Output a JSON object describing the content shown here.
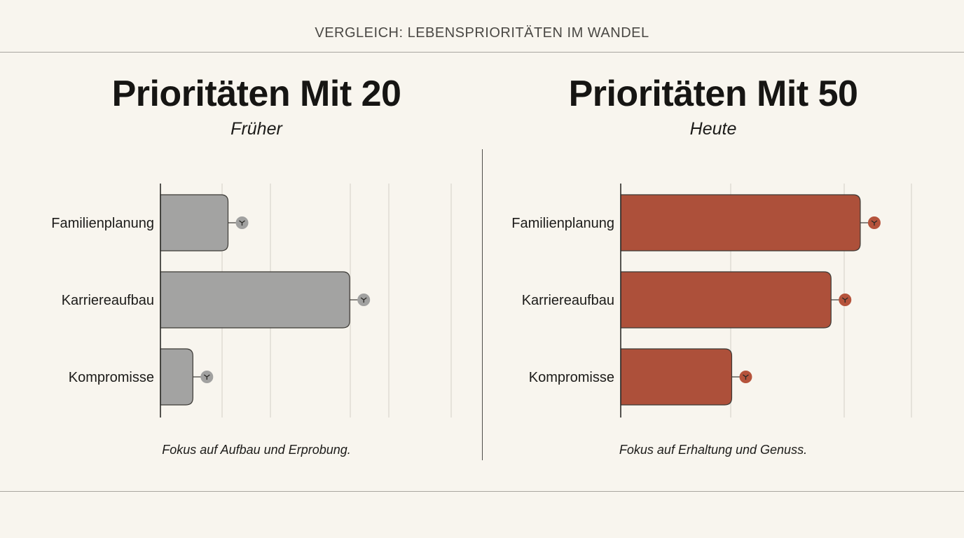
{
  "header": {
    "title": "VERGLEICH: LEBENSPRIORITÄTEN IM WANDEL"
  },
  "left_panel": {
    "title": "Prioritäten Mit 20",
    "subtitle": "Früher",
    "note": "Fokus auf Aufbau und Erprobung."
  },
  "right_panel": {
    "title": "Prioritäten Mit 50",
    "subtitle": "Heute",
    "note": "Fokus auf Erhaltung und Genuss."
  },
  "colors": {
    "left_bar": "#a3a3a2",
    "left_marker": "#a1a1a0",
    "right_bar": "#ad503a",
    "right_marker": "#b5533b",
    "grid": "#d9d5cd",
    "axis": "#2b2a27"
  },
  "chart_data": [
    {
      "type": "bar",
      "orientation": "horizontal",
      "title": "Prioritäten Mit 20",
      "categories": [
        "Familienplanung",
        "Karriereaufbau",
        "Kompromisse"
      ],
      "values": [
        25,
        70,
        12
      ],
      "xlim": [
        0,
        100
      ],
      "grid": true,
      "xlabel": "",
      "ylabel": ""
    },
    {
      "type": "bar",
      "orientation": "horizontal",
      "title": "Prioritäten Mit 50",
      "categories": [
        "Familienplanung",
        "Karriereaufbau",
        "Kompromisse"
      ],
      "values": [
        82,
        72,
        38
      ],
      "xlim": [
        0,
        100
      ],
      "grid": true,
      "xlabel": "",
      "ylabel": ""
    }
  ]
}
